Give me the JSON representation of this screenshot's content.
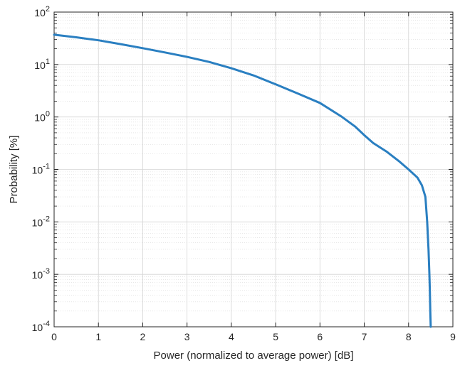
{
  "chart_data": {
    "type": "line",
    "xlabel": "Power (normalized to average power) [dB]",
    "ylabel": "Probability [%]",
    "xlim": [
      0,
      9
    ],
    "ylim": [
      0.0001,
      100
    ],
    "yscale": "log",
    "grid": true,
    "minor_grid": true,
    "x_ticks": [
      "0",
      "1",
      "2",
      "3",
      "4",
      "5",
      "6",
      "7",
      "8",
      "9"
    ],
    "y_ticks": [
      {
        "base": "10",
        "exp": "-4",
        "value": 0.0001
      },
      {
        "base": "10",
        "exp": "-3",
        "value": 0.001
      },
      {
        "base": "10",
        "exp": "-2",
        "value": 0.01
      },
      {
        "base": "10",
        "exp": "-1",
        "value": 0.1
      },
      {
        "base": "10",
        "exp": "0",
        "value": 1
      },
      {
        "base": "10",
        "exp": "1",
        "value": 10
      },
      {
        "base": "10",
        "exp": "2",
        "value": 100
      }
    ],
    "line_color": "#2a7fc1",
    "series": [
      {
        "x": [
          0,
          0.5,
          1,
          1.5,
          2,
          2.5,
          3,
          3.5,
          4,
          4.5,
          5,
          5.5,
          6,
          6.5,
          6.8,
          7,
          7.2,
          7.5,
          7.8,
          8.0,
          8.2,
          8.3,
          8.38,
          8.42,
          8.45,
          8.47,
          8.48,
          8.49,
          8.5
        ],
        "y": [
          37,
          33,
          29,
          24.5,
          20.5,
          17,
          14,
          11.2,
          8.5,
          6.2,
          4.2,
          2.8,
          1.85,
          1.0,
          0.65,
          0.45,
          0.32,
          0.22,
          0.14,
          0.1,
          0.07,
          0.05,
          0.03,
          0.01,
          0.003,
          0.001,
          0.0005,
          0.0002,
          0.0001
        ]
      }
    ]
  }
}
